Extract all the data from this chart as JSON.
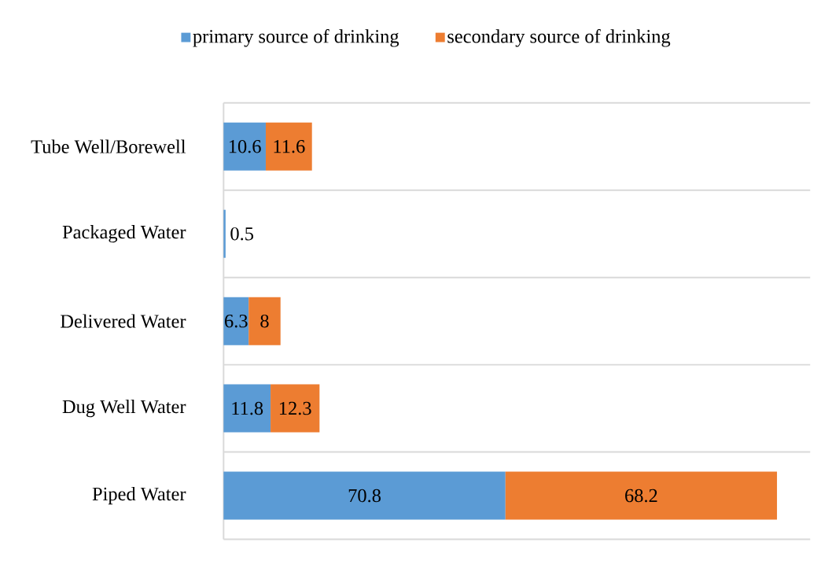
{
  "chart_data": {
    "type": "bar",
    "orientation": "horizontal",
    "stacked": true,
    "categories": [
      "Tube Well/Borewell",
      "Packaged Water",
      "Delivered Water",
      "Dug Well Water",
      "Piped Water"
    ],
    "series": [
      {
        "name": "primary source of drinking",
        "color": "#5b9bd5",
        "values": [
          10.6,
          0.5,
          6.3,
          11.8,
          70.8
        ]
      },
      {
        "name": "secondary source of drinking",
        "color": "#ed7d31",
        "values": [
          11.6,
          null,
          8,
          12.3,
          68.2
        ]
      }
    ],
    "data_labels": true,
    "legend": "top",
    "grid": "y"
  }
}
